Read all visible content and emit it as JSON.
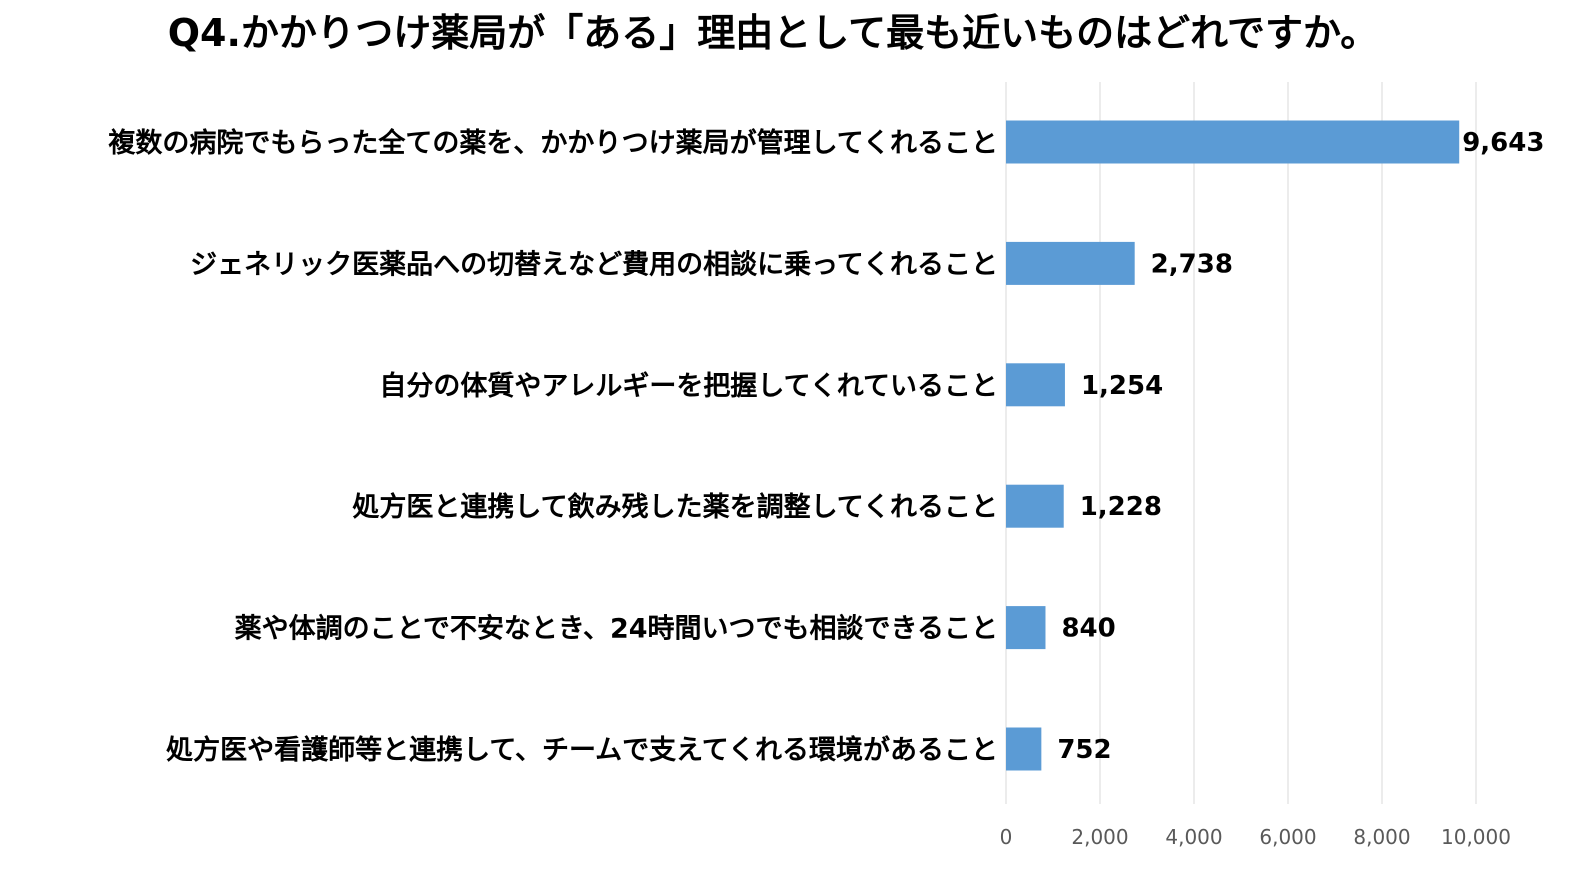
{
  "chart_data": {
    "type": "bar",
    "orientation": "horizontal",
    "title": "Q4.かかりつけ薬局が「ある」理由として最も近いものはどれですか。",
    "categories": [
      "複数の病院でもらった全ての薬を、かかりつけ薬局が管理してくれること",
      "ジェネリック医薬品への切替えなど費用の相談に乗ってくれること",
      "自分の体質やアレルギーを把握してくれていること",
      "処方医と連携して飲み残した薬を調整してくれること",
      "薬や体調のことで不安なとき、24時間いつでも相談できること",
      "処方医や看護師等と連携して、チームで支えてくれる環境があること"
    ],
    "values": [
      9643,
      2738,
      1254,
      1228,
      840,
      752
    ],
    "value_labels": [
      "9,643",
      "2,738",
      "1,254",
      "1,228",
      "840",
      "752"
    ],
    "xlim": [
      0,
      10000
    ],
    "xticks": [
      0,
      2000,
      4000,
      6000,
      8000,
      10000
    ],
    "xtick_labels": [
      "0",
      "2,000",
      "4,000",
      "6,000",
      "8,000",
      "10,000"
    ],
    "bar_color": "#5b9bd5",
    "grid": true,
    "legend": "none"
  }
}
